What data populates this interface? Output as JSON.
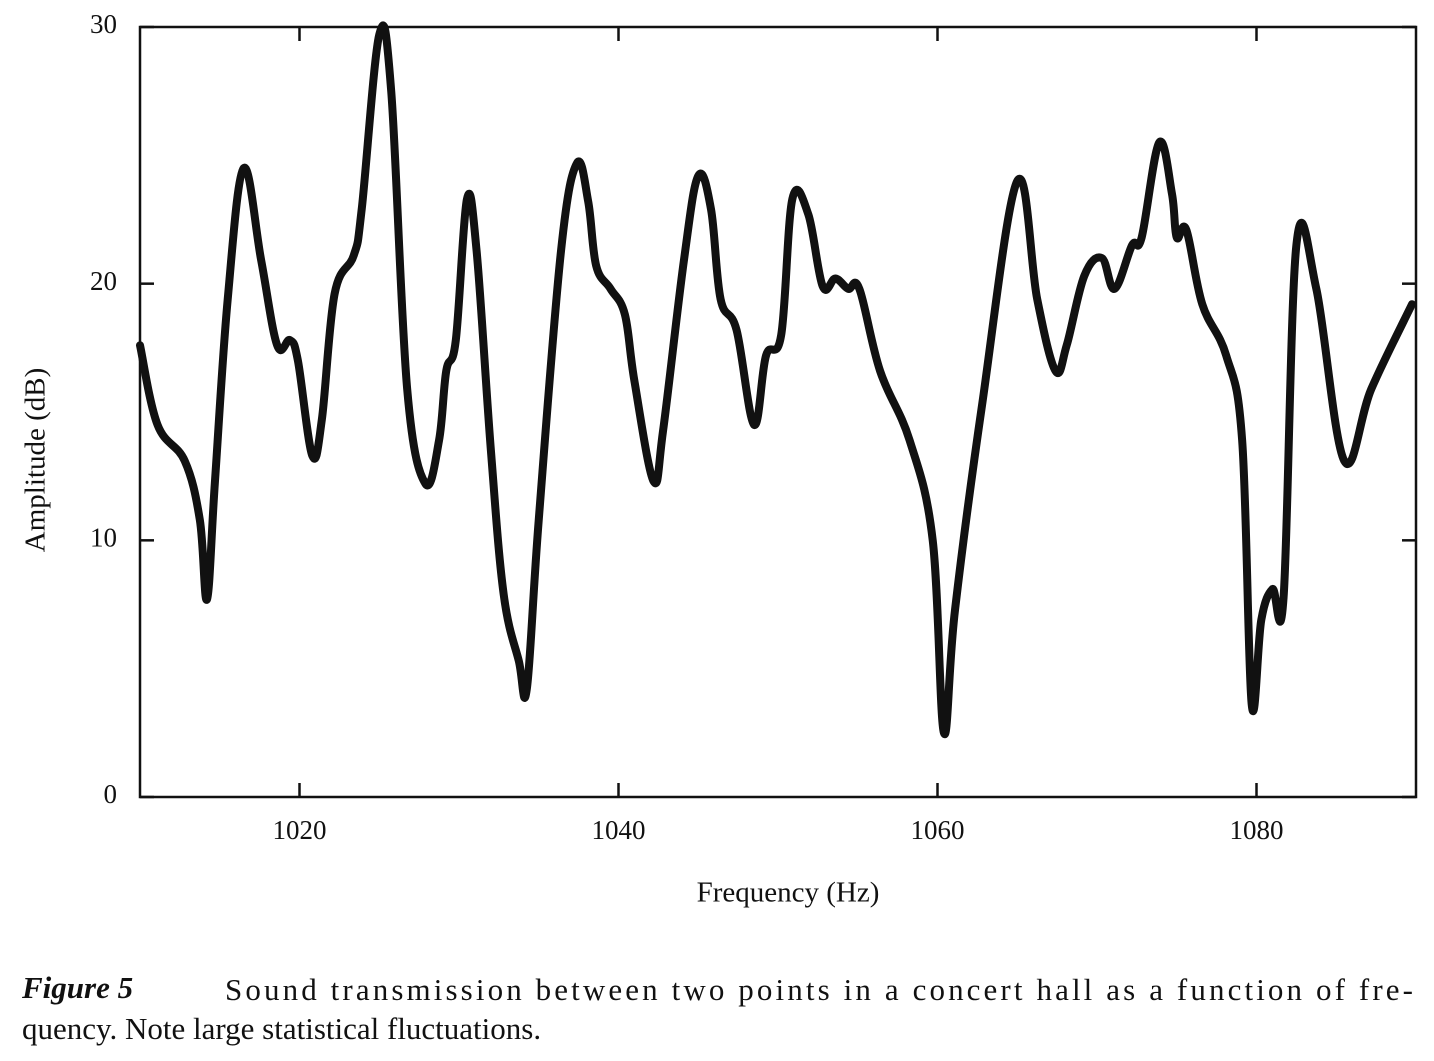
{
  "chart_data": {
    "type": "line",
    "x_label": "Frequency (Hz)",
    "y_label": "Amplitude (dB)",
    "caption_label": "Figure 5",
    "caption_lines": [
      "Sound transmission between two points in a concert hall as a function of fre-",
      "quency. Note large statistical fluctuations."
    ],
    "xlim": [
      1010,
      1090
    ],
    "xticks": [
      1020,
      1040,
      1060,
      1080
    ],
    "ylim": [
      0,
      30
    ],
    "yticks": [
      0,
      10,
      20,
      30
    ],
    "color": "#111111",
    "grid": false,
    "x": [
      1010,
      1011.1,
      1012.8,
      1013.75,
      1014.2,
      1014.7,
      1015.5,
      1016.5,
      1017.6,
      1018.6,
      1019.4,
      1019.9,
      1020.8,
      1021.4,
      1022.2,
      1023.4,
      1023.9,
      1025,
      1025.75,
      1026.75,
      1027.9,
      1028.75,
      1029.2,
      1029.8,
      1030.5,
      1031.1,
      1032,
      1032.8,
      1033.75,
      1034.25,
      1035,
      1036.4,
      1037.4,
      1038.1,
      1038.6,
      1039.5,
      1040.4,
      1041,
      1042.2,
      1042.8,
      1044.1,
      1045,
      1045.8,
      1046.4,
      1047.4,
      1048.5,
      1049.25,
      1050.2,
      1050.9,
      1051.9,
      1052.8,
      1053.6,
      1054.4,
      1055.1,
      1056.4,
      1058.25,
      1059.7,
      1060.4,
      1061.1,
      1062.8,
      1065,
      1066.25,
      1067.4,
      1068.1,
      1069.2,
      1070.3,
      1071.1,
      1072.2,
      1072.8,
      1073.9,
      1074.7,
      1075,
      1075.6,
      1076.6,
      1078.1,
      1079.1,
      1079.7,
      1080.3,
      1081,
      1081.7,
      1082.5,
      1083.75,
      1085.5,
      1087.2,
      1089.75
    ],
    "values": [
      17.6,
      14.5,
      13.1,
      10.8,
      7.7,
      12.3,
      19.4,
      24.5,
      20.9,
      17.6,
      17.8,
      17.0,
      13.3,
      14.7,
      19.6,
      21.1,
      22.9,
      29.7,
      27.5,
      15.9,
      12.2,
      13.9,
      16.6,
      17.8,
      23.3,
      21.3,
      13.5,
      7.9,
      5.3,
      4.2,
      10.8,
      21.3,
      24.7,
      23.2,
      20.7,
      19.8,
      18.8,
      16.2,
      12.3,
      14.3,
      20.9,
      24.2,
      22.9,
      19.4,
      18.2,
      14.5,
      17.2,
      18.0,
      23.3,
      22.7,
      19.9,
      20.2,
      19.8,
      19.8,
      16.6,
      13.9,
      10.0,
      2.5,
      7.3,
      15.3,
      24.0,
      19.4,
      16.6,
      17.6,
      20.3,
      21.0,
      19.8,
      21.5,
      21.8,
      25.5,
      23.5,
      21.8,
      22.1,
      19.2,
      17.2,
      13.9,
      3.6,
      6.9,
      8.1,
      7.8,
      21.5,
      19.8,
      13.1,
      15.9,
      19.2
    ]
  }
}
